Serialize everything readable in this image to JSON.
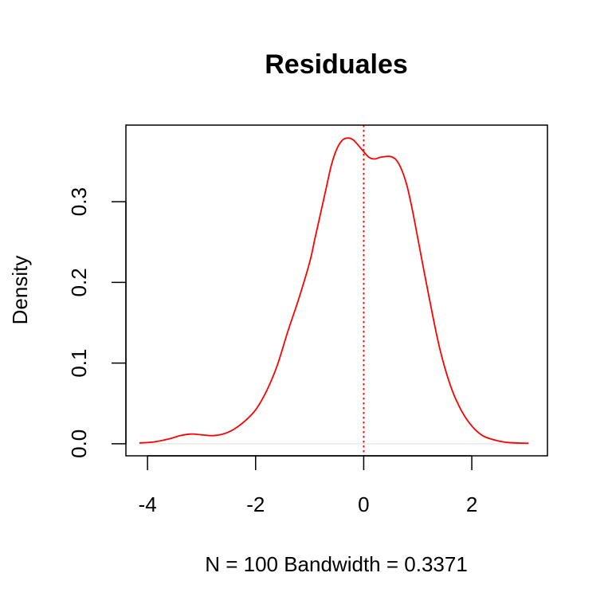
{
  "chart_data": {
    "type": "line",
    "title": "Residuales",
    "xlabel": "N = 100   Bandwidth = 0.3371",
    "ylabel": "Density",
    "xlim": [
      -4.4,
      3.4
    ],
    "ylim": [
      -0.015,
      0.395
    ],
    "x_ticks": [
      -4,
      -2,
      0,
      2
    ],
    "x_tick_labels": [
      "-4",
      "-2",
      "0",
      "2"
    ],
    "y_ticks": [
      0.0,
      0.1,
      0.2,
      0.3
    ],
    "y_tick_labels": [
      "0.0",
      "0.1",
      "0.2",
      "0.3"
    ],
    "grid": false,
    "colors": {
      "density": "#ff0000",
      "mean_line": "#ff0000",
      "zero_line": "#e6e6e6"
    },
    "vline": {
      "x": 0.0,
      "style": "dotted"
    },
    "hline": {
      "y": 0.0
    },
    "series": [
      {
        "x": [
          -4.15,
          -3.9,
          -3.6,
          -3.4,
          -3.2,
          -3.0,
          -2.8,
          -2.6,
          -2.4,
          -2.2,
          -2.0,
          -1.8,
          -1.6,
          -1.4,
          -1.2,
          -1.0,
          -0.9,
          -0.8,
          -0.7,
          -0.6,
          -0.5,
          -0.4,
          -0.3,
          -0.2,
          -0.1,
          0.0,
          0.1,
          0.2,
          0.3,
          0.4,
          0.5,
          0.6,
          0.7,
          0.8,
          0.9,
          1.0,
          1.2,
          1.4,
          1.6,
          1.8,
          2.0,
          2.2,
          2.4,
          2.6,
          2.8,
          3.05
        ],
        "y": [
          0.001,
          0.002,
          0.006,
          0.01,
          0.012,
          0.011,
          0.01,
          0.012,
          0.018,
          0.028,
          0.042,
          0.065,
          0.097,
          0.14,
          0.18,
          0.225,
          0.255,
          0.285,
          0.315,
          0.345,
          0.365,
          0.376,
          0.379,
          0.377,
          0.37,
          0.362,
          0.355,
          0.353,
          0.355,
          0.356,
          0.356,
          0.352,
          0.34,
          0.32,
          0.29,
          0.255,
          0.185,
          0.12,
          0.073,
          0.042,
          0.022,
          0.01,
          0.005,
          0.002,
          0.001,
          0.0005
        ]
      }
    ]
  }
}
